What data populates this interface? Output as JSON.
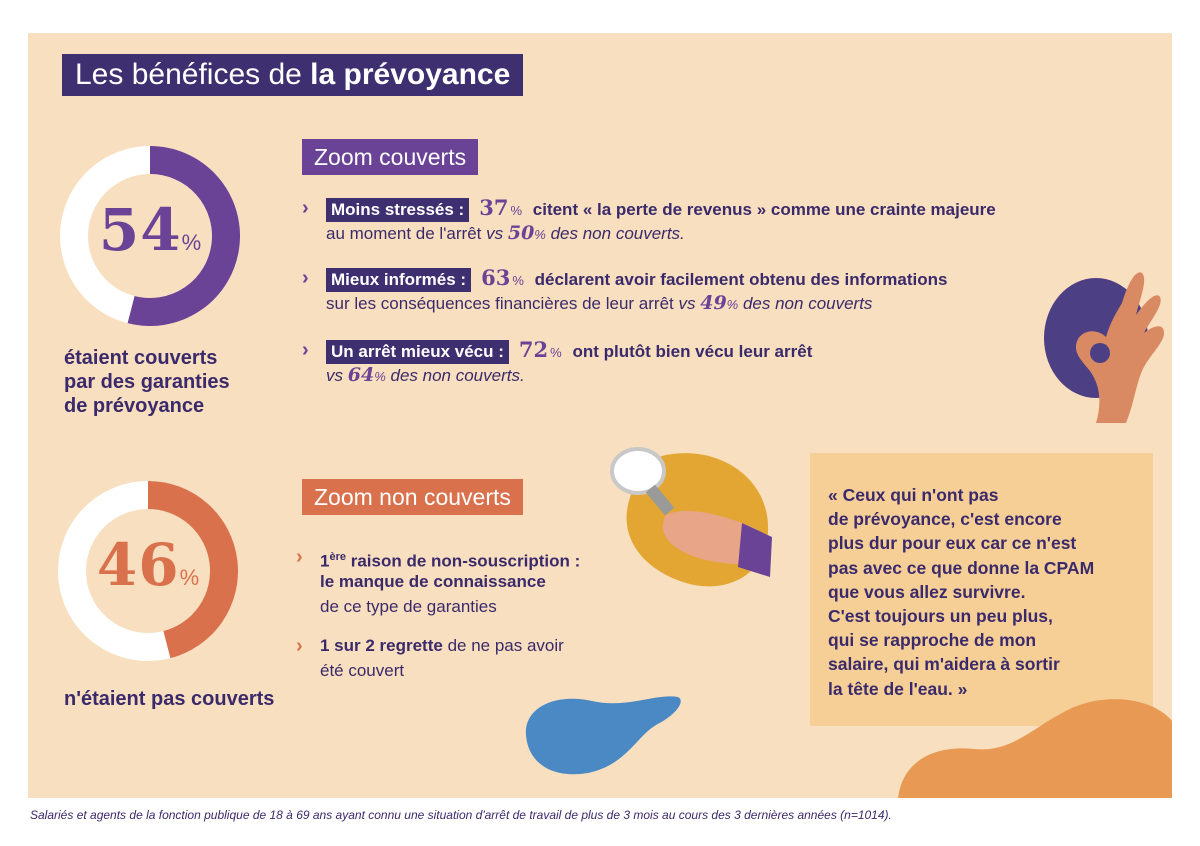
{
  "title": {
    "part1": "Les bénéfices de ",
    "part2": "la prévoyance"
  },
  "colors": {
    "purple": "#6a4296",
    "navy": "#3d2f70",
    "orange": "#d9714c",
    "bg": "#f8dfbf",
    "ring_bg": "#ffffff",
    "quote_bg": "#f5cf96"
  },
  "chart_data": [
    {
      "type": "pie",
      "title": "étaient couverts par des garanties de prévoyance",
      "categories": [
        "couverts",
        "non couverts"
      ],
      "values": [
        54,
        46
      ],
      "label": "54",
      "unit": "%"
    },
    {
      "type": "pie",
      "title": "n'étaient pas couverts",
      "categories": [
        "non couverts",
        "couverts"
      ],
      "values": [
        46,
        54
      ],
      "label": "46",
      "unit": "%"
    }
  ],
  "covered": {
    "caption_lines": [
      "étaient couverts",
      "par des garanties",
      "de prévoyance"
    ]
  },
  "uncovered": {
    "caption": "n'étaient pas couverts"
  },
  "zoom_covered": {
    "heading": "Zoom couverts",
    "items": [
      {
        "tag": "Moins stressés :",
        "num": "37",
        "pct": "%",
        "text1": "citent « la perte de revenus » comme une crainte majeure",
        "text2a": "au moment de l'arrêt",
        "vs": "vs",
        "num2": "50",
        "pct2": "%",
        "text2b": "des non couverts."
      },
      {
        "tag": "Mieux informés :",
        "num": "63",
        "pct": "%",
        "text1": "déclarent avoir facilement obtenu des informations",
        "text2a": "sur les conséquences financières de leur arrêt",
        "vs": "vs",
        "num2": "49",
        "pct2": "%",
        "text2b": "des non couverts"
      },
      {
        "tag": "Un arrêt mieux vécu :",
        "num": "72",
        "pct": "%",
        "text1": "ont plutôt bien vécu leur arrêt",
        "text2a": "",
        "vs": "vs",
        "num2": "64",
        "pct2": "%",
        "text2b": "des non couverts."
      }
    ]
  },
  "zoom_uncovered": {
    "heading": "Zoom non couverts",
    "item1": {
      "num": "1",
      "sup": "ère",
      "bold1": "raison de non-souscription :",
      "bold2": "le manque de connaissance",
      "plain": "de ce type de garanties"
    },
    "item2": {
      "bold": "1 sur 2 regrette",
      "plain1": "de ne pas avoir",
      "plain2": "été couvert"
    }
  },
  "quote": "« Ceux qui n'ont pas\nde prévoyance, c'est encore\nplus dur pour eux car ce n'est\npas avec ce que donne la CPAM\nque vous allez survivre.\nC'est toujours un peu plus,\nqui se rapproche de mon\nsalaire, qui m'aidera à sortir\nla tête de l'eau. »",
  "footnote": "Salariés et agents de la fonction publique de 18 à 69 ans ayant connu une situation d'arrêt de travail de plus de 3 mois au cours des 3 dernières années (n=1014).",
  "icons": [
    "ok-hand-icon",
    "magnifier-icon",
    "chevron-right-icon"
  ]
}
